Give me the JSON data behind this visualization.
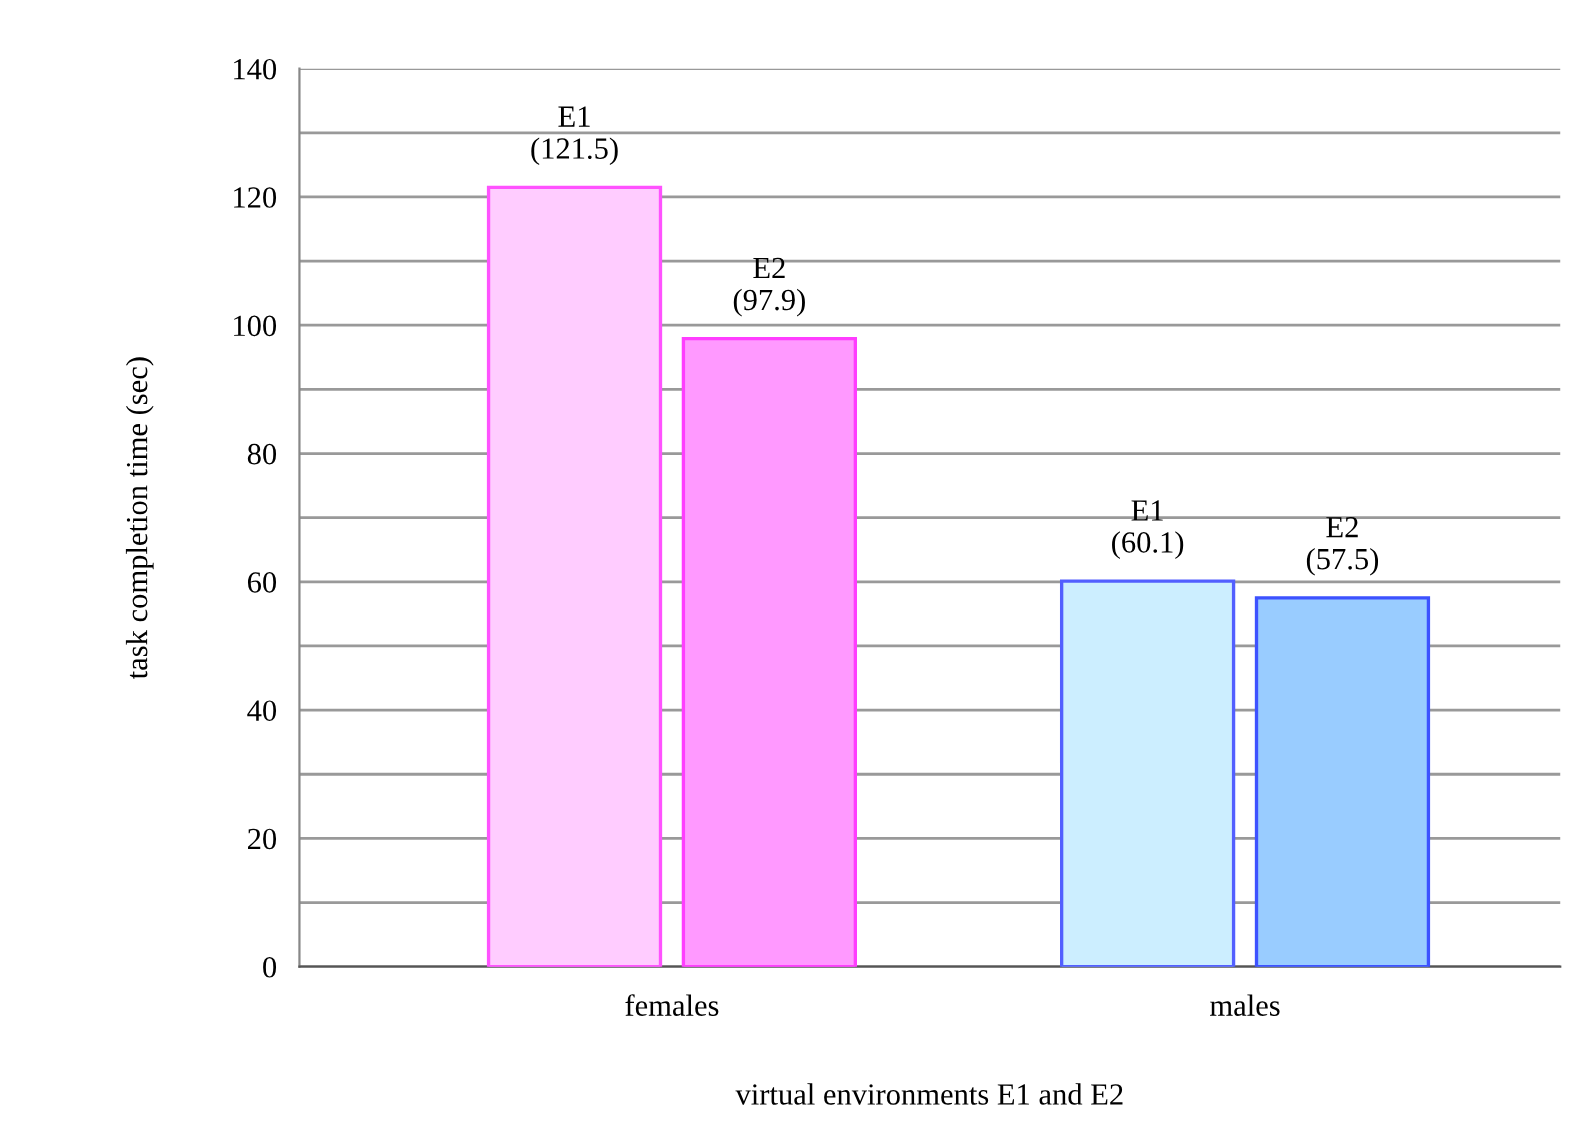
{
  "chart_data": {
    "type": "bar",
    "xlabel": "virtual environments E1 and E2",
    "ylabel": "task completion time (sec)",
    "categories": [
      "females",
      "males"
    ],
    "series": [
      {
        "name": "E1",
        "colors": [
          "#ffccff",
          "#cceeff"
        ],
        "values": [
          121.5,
          60.1
        ],
        "value_labels": [
          "(121.5)",
          "(60.1)"
        ]
      },
      {
        "name": "E2",
        "colors": [
          "#ff99ff",
          "#99ccff"
        ],
        "values": [
          97.9,
          57.5
        ],
        "value_labels": [
          "(97.9)",
          "(57.5)"
        ]
      }
    ],
    "ylim": [
      0,
      140
    ],
    "yticks": [
      0,
      {
        "value": 10,
        "label": null
      },
      20,
      {
        "value": 30,
        "label": null
      },
      40,
      {
        "value": 50,
        "label": null
      },
      60,
      {
        "value": 70,
        "label": null
      },
      80,
      {
        "value": 90,
        "label": null
      },
      100,
      {
        "value": 110,
        "label": null
      },
      120,
      {
        "value": 130,
        "label": null
      },
      140
    ],
    "grid": "y",
    "legend": false
  }
}
